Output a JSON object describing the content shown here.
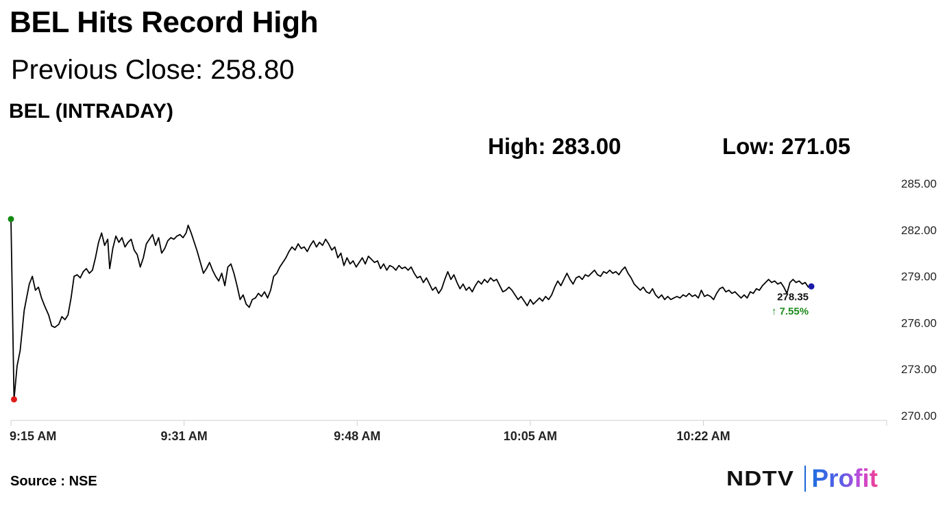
{
  "header": {
    "title": "BEL Hits Record High",
    "subtitle": "Previous Close: 258.80",
    "chart_name": "BEL (INTRADAY)",
    "high_label": "High: 283.00",
    "low_label": "Low: 271.05"
  },
  "footer": {
    "source": "Source : NSE",
    "logo_left": "NDTV",
    "logo_right": "Profit"
  },
  "colors": {
    "line": "#000000",
    "open_marker": "#138a13",
    "low_marker": "#e01a1a",
    "last_marker": "#1a1aa8",
    "change_positive": "#1a8a1a"
  },
  "chart_data": {
    "type": "line",
    "title": "BEL (INTRADAY)",
    "ylim": [
      270.0,
      285.0
    ],
    "yticks": [
      "285.00",
      "282.00",
      "279.00",
      "276.00",
      "273.00",
      "270.00"
    ],
    "ytick_values": [
      285,
      282,
      279,
      276,
      273,
      270
    ],
    "xlim": [
      "9:15",
      "10:41"
    ],
    "xticks": [
      "9:15 AM",
      "9:31 AM",
      "9:48 AM",
      "10:05 AM",
      "10:22 AM"
    ],
    "xtick_minutes": [
      0,
      17,
      34,
      51,
      68
    ],
    "x_range_minutes": [
      0,
      86
    ],
    "last_value_label": "278.35",
    "change_label": "↑ 7.55%",
    "series": [
      {
        "values": [
          [
            0.0,
            282.7
          ],
          [
            0.3,
            271.05
          ],
          [
            0.6,
            273.2
          ],
          [
            0.9,
            274.2
          ],
          [
            1.3,
            276.8
          ],
          [
            1.8,
            278.5
          ],
          [
            2.1,
            279.0
          ],
          [
            2.4,
            278.1
          ],
          [
            2.7,
            278.3
          ],
          [
            3.0,
            277.6
          ],
          [
            3.3,
            277.1
          ],
          [
            3.7,
            276.5
          ],
          [
            4.0,
            275.8
          ],
          [
            4.3,
            275.7
          ],
          [
            4.7,
            275.9
          ],
          [
            5.0,
            276.4
          ],
          [
            5.3,
            276.2
          ],
          [
            5.6,
            276.5
          ],
          [
            5.9,
            277.6
          ],
          [
            6.2,
            279.0
          ],
          [
            6.5,
            279.1
          ],
          [
            6.8,
            278.9
          ],
          [
            7.1,
            279.3
          ],
          [
            7.4,
            279.5
          ],
          [
            7.7,
            279.2
          ],
          [
            8.0,
            279.4
          ],
          [
            8.3,
            280.2
          ],
          [
            8.6,
            281.2
          ],
          [
            8.9,
            281.8
          ],
          [
            9.2,
            281.0
          ],
          [
            9.5,
            281.4
          ],
          [
            9.7,
            279.5
          ],
          [
            10.0,
            280.8
          ],
          [
            10.3,
            281.6
          ],
          [
            10.6,
            281.2
          ],
          [
            10.9,
            281.5
          ],
          [
            11.2,
            280.9
          ],
          [
            11.5,
            281.2
          ],
          [
            11.8,
            281.4
          ],
          [
            12.1,
            280.7
          ],
          [
            12.4,
            280.4
          ],
          [
            12.7,
            279.6
          ],
          [
            13.0,
            280.2
          ],
          [
            13.3,
            281.1
          ],
          [
            13.6,
            281.4
          ],
          [
            13.9,
            281.7
          ],
          [
            14.2,
            281.0
          ],
          [
            14.5,
            281.5
          ],
          [
            14.8,
            280.5
          ],
          [
            15.1,
            280.8
          ],
          [
            15.4,
            281.3
          ],
          [
            15.7,
            281.5
          ],
          [
            16.0,
            281.4
          ],
          [
            16.3,
            281.6
          ],
          [
            16.6,
            281.7
          ],
          [
            16.9,
            281.5
          ],
          [
            17.2,
            281.8
          ],
          [
            17.4,
            282.3
          ],
          [
            17.7,
            281.8
          ],
          [
            18.0,
            281.2
          ],
          [
            18.3,
            280.6
          ],
          [
            18.6,
            279.9
          ],
          [
            18.9,
            279.2
          ],
          [
            19.2,
            279.5
          ],
          [
            19.5,
            279.9
          ],
          [
            19.8,
            279.4
          ],
          [
            20.1,
            279.0
          ],
          [
            20.4,
            278.7
          ],
          [
            20.7,
            279.2
          ],
          [
            21.0,
            278.4
          ],
          [
            21.3,
            279.6
          ],
          [
            21.6,
            279.8
          ],
          [
            21.9,
            279.2
          ],
          [
            22.2,
            278.4
          ],
          [
            22.5,
            277.5
          ],
          [
            22.8,
            277.8
          ],
          [
            23.1,
            277.2
          ],
          [
            23.4,
            277.0
          ],
          [
            23.7,
            277.5
          ],
          [
            24.0,
            277.6
          ],
          [
            24.3,
            277.9
          ],
          [
            24.6,
            277.7
          ],
          [
            24.9,
            278.0
          ],
          [
            25.2,
            277.6
          ],
          [
            25.5,
            278.1
          ],
          [
            25.8,
            279.0
          ],
          [
            26.1,
            279.2
          ],
          [
            26.4,
            279.6
          ],
          [
            26.7,
            279.9
          ],
          [
            27.0,
            280.2
          ],
          [
            27.3,
            280.6
          ],
          [
            27.6,
            280.9
          ],
          [
            27.9,
            280.7
          ],
          [
            28.2,
            281.1
          ],
          [
            28.5,
            280.8
          ],
          [
            28.8,
            280.9
          ],
          [
            29.1,
            280.6
          ],
          [
            29.4,
            281.0
          ],
          [
            29.7,
            281.3
          ],
          [
            30.0,
            280.9
          ],
          [
            30.3,
            281.2
          ],
          [
            30.6,
            281.0
          ],
          [
            30.9,
            281.4
          ],
          [
            31.2,
            281.1
          ],
          [
            31.5,
            280.7
          ],
          [
            31.8,
            280.9
          ],
          [
            32.1,
            280.2
          ],
          [
            32.4,
            280.5
          ],
          [
            32.7,
            279.7
          ],
          [
            33.0,
            280.2
          ],
          [
            33.3,
            279.8
          ],
          [
            33.6,
            280.0
          ],
          [
            33.9,
            279.6
          ],
          [
            34.2,
            279.9
          ],
          [
            34.5,
            280.2
          ],
          [
            34.8,
            279.8
          ],
          [
            35.1,
            280.3
          ],
          [
            35.4,
            280.1
          ],
          [
            35.7,
            279.9
          ],
          [
            36.0,
            280.0
          ],
          [
            36.3,
            279.5
          ],
          [
            36.6,
            279.8
          ],
          [
            36.9,
            279.4
          ],
          [
            37.2,
            279.7
          ],
          [
            37.5,
            279.6
          ],
          [
            37.8,
            279.4
          ],
          [
            38.1,
            279.7
          ],
          [
            38.4,
            279.5
          ],
          [
            38.7,
            279.6
          ],
          [
            39.0,
            279.4
          ],
          [
            39.3,
            279.6
          ],
          [
            39.6,
            279.2
          ],
          [
            39.9,
            278.9
          ],
          [
            40.2,
            279.0
          ],
          [
            40.5,
            278.6
          ],
          [
            40.8,
            278.9
          ],
          [
            41.1,
            278.5
          ],
          [
            41.4,
            278.1
          ],
          [
            41.7,
            278.3
          ],
          [
            42.0,
            277.9
          ],
          [
            42.3,
            278.2
          ],
          [
            42.6,
            278.8
          ],
          [
            42.9,
            279.3
          ],
          [
            43.2,
            278.8
          ],
          [
            43.5,
            279.1
          ],
          [
            43.8,
            278.6
          ],
          [
            44.1,
            278.2
          ],
          [
            44.4,
            278.5
          ],
          [
            44.7,
            278.1
          ],
          [
            45.0,
            278.3
          ],
          [
            45.3,
            278.0
          ],
          [
            45.6,
            278.4
          ],
          [
            45.9,
            278.7
          ],
          [
            46.2,
            278.5
          ],
          [
            46.5,
            278.8
          ],
          [
            46.8,
            278.6
          ],
          [
            47.1,
            278.9
          ],
          [
            47.4,
            278.7
          ],
          [
            47.7,
            278.8
          ],
          [
            48.0,
            278.4
          ],
          [
            48.3,
            278.0
          ],
          [
            48.6,
            278.1
          ],
          [
            48.9,
            278.3
          ],
          [
            49.2,
            278.1
          ],
          [
            49.5,
            277.8
          ],
          [
            49.8,
            277.5
          ],
          [
            50.1,
            277.7
          ],
          [
            50.4,
            277.4
          ],
          [
            50.7,
            277.1
          ],
          [
            51.0,
            277.5
          ],
          [
            51.3,
            277.2
          ],
          [
            51.6,
            277.4
          ],
          [
            51.9,
            277.6
          ],
          [
            52.2,
            277.4
          ],
          [
            52.5,
            277.7
          ],
          [
            52.8,
            277.5
          ],
          [
            53.1,
            277.8
          ],
          [
            53.4,
            278.3
          ],
          [
            53.7,
            278.7
          ],
          [
            54.0,
            278.4
          ],
          [
            54.3,
            278.8
          ],
          [
            54.6,
            279.2
          ],
          [
            54.9,
            278.8
          ],
          [
            55.2,
            278.5
          ],
          [
            55.5,
            278.9
          ],
          [
            55.8,
            279.0
          ],
          [
            56.1,
            278.8
          ],
          [
            56.4,
            279.1
          ],
          [
            56.7,
            279.0
          ],
          [
            57.0,
            279.2
          ],
          [
            57.3,
            279.4
          ],
          [
            57.6,
            279.1
          ],
          [
            57.9,
            279.0
          ],
          [
            58.2,
            279.3
          ],
          [
            58.5,
            279.2
          ],
          [
            58.8,
            279.4
          ],
          [
            59.1,
            279.2
          ],
          [
            59.4,
            279.3
          ],
          [
            59.7,
            279.1
          ],
          [
            60.0,
            279.4
          ],
          [
            60.3,
            279.6
          ],
          [
            60.6,
            279.2
          ],
          [
            60.9,
            278.9
          ],
          [
            61.2,
            278.5
          ],
          [
            61.5,
            278.3
          ],
          [
            61.8,
            278.1
          ],
          [
            62.1,
            278.3
          ],
          [
            62.4,
            278.0
          ],
          [
            62.7,
            277.9
          ],
          [
            63.0,
            278.2
          ],
          [
            63.3,
            277.8
          ],
          [
            63.6,
            277.6
          ],
          [
            63.9,
            277.8
          ],
          [
            64.2,
            277.5
          ],
          [
            64.5,
            277.7
          ],
          [
            64.8,
            277.5
          ],
          [
            65.1,
            277.6
          ],
          [
            65.4,
            277.7
          ],
          [
            65.7,
            277.6
          ],
          [
            66.0,
            277.8
          ],
          [
            66.3,
            277.7
          ],
          [
            66.6,
            277.9
          ],
          [
            66.9,
            277.7
          ],
          [
            67.2,
            277.8
          ],
          [
            67.5,
            277.6
          ],
          [
            67.8,
            278.1
          ],
          [
            68.1,
            277.7
          ],
          [
            68.4,
            277.8
          ],
          [
            68.7,
            277.7
          ],
          [
            69.0,
            277.5
          ],
          [
            69.3,
            277.9
          ],
          [
            69.6,
            278.2
          ],
          [
            69.9,
            278.3
          ],
          [
            70.2,
            278.0
          ],
          [
            70.5,
            278.1
          ],
          [
            70.8,
            277.9
          ],
          [
            71.1,
            278.0
          ],
          [
            71.4,
            277.8
          ],
          [
            71.7,
            277.6
          ],
          [
            72.0,
            277.8
          ],
          [
            72.3,
            277.6
          ],
          [
            72.6,
            278.0
          ],
          [
            72.9,
            277.9
          ],
          [
            73.2,
            278.2
          ],
          [
            73.5,
            278.1
          ],
          [
            73.8,
            278.4
          ],
          [
            74.1,
            278.6
          ],
          [
            74.4,
            278.8
          ],
          [
            74.7,
            278.6
          ],
          [
            75.0,
            278.7
          ],
          [
            75.3,
            278.5
          ],
          [
            75.6,
            278.6
          ],
          [
            75.9,
            278.3
          ],
          [
            76.2,
            277.9
          ],
          [
            76.5,
            278.6
          ],
          [
            76.8,
            278.8
          ],
          [
            77.1,
            278.6
          ],
          [
            77.4,
            278.7
          ],
          [
            77.7,
            278.5
          ],
          [
            78.0,
            278.6
          ],
          [
            78.3,
            278.3
          ],
          [
            78.6,
            278.35
          ]
        ]
      }
    ],
    "markers": {
      "open": [
        0.0,
        282.7
      ],
      "low": [
        0.3,
        271.05
      ],
      "last": [
        78.6,
        278.35
      ]
    }
  }
}
